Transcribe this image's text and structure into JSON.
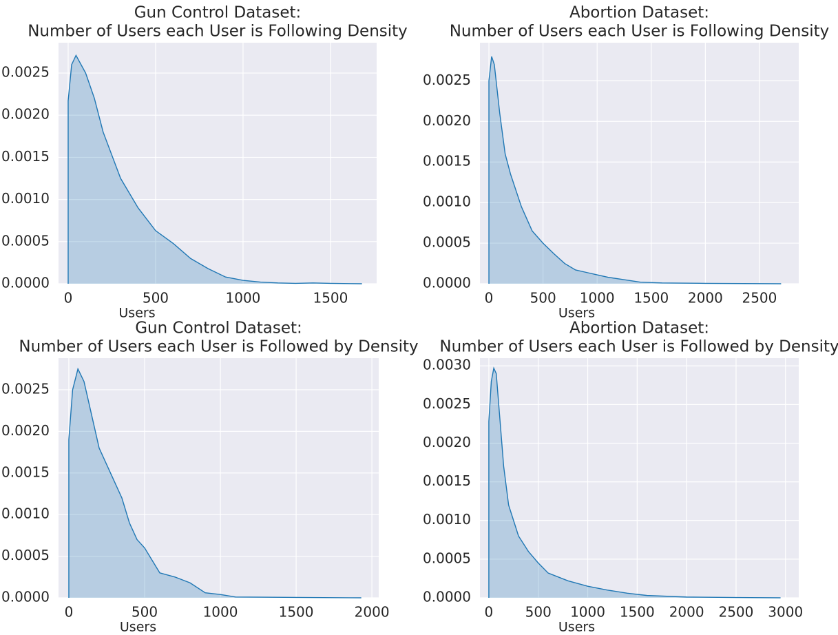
{
  "chart_data": [
    {
      "type": "area",
      "title": [
        "Gun Control Dataset:",
        "Number of Users each User is Following Density"
      ],
      "xlabel": "Users",
      "color": "#1f77b4",
      "grid": true,
      "x": [
        0,
        20,
        45,
        100,
        150,
        200,
        300,
        400,
        500,
        600,
        700,
        800,
        900,
        1000,
        1100,
        1200,
        1300,
        1400,
        1500,
        1680
      ],
      "values": [
        0.00217,
        0.0026,
        0.00271,
        0.0025,
        0.0022,
        0.0018,
        0.00125,
        0.0009,
        0.00063,
        0.00048,
        0.0003,
        0.00018,
        8e-05,
        4e-05,
        2e-05,
        1e-05,
        5e-06,
        1e-05,
        5e-06,
        0
      ],
      "xlim": [
        -55,
        1764
      ],
      "xticks": [
        0,
        500,
        1000,
        1500
      ],
      "ylim": [
        0,
        0.00286
      ],
      "yticks": [
        {
          "value": 0,
          "label": "0.0000"
        },
        {
          "value": 0.0005,
          "label": "0.0005"
        },
        {
          "value": 0.001,
          "label": "0.0010"
        },
        {
          "value": 0.0015,
          "label": "0.0015"
        },
        {
          "value": 0.002,
          "label": "0.0020"
        },
        {
          "value": 0.0025,
          "label": "0.0025"
        }
      ]
    },
    {
      "type": "area",
      "title": [
        "Abortion Dataset:",
        "Number of Users each User is Following Density"
      ],
      "xlabel": "Users",
      "color": "#1f77b4",
      "grid": true,
      "x": [
        0,
        25,
        50,
        100,
        150,
        200,
        300,
        400,
        500,
        600,
        700,
        800,
        900,
        1000,
        1100,
        1200,
        1300,
        1400,
        1600,
        2000,
        2700
      ],
      "values": [
        0.0025,
        0.0028,
        0.0027,
        0.0021,
        0.0016,
        0.00135,
        0.00095,
        0.00065,
        0.0005,
        0.00037,
        0.00025,
        0.00017,
        0.00014,
        0.00011,
        8e-05,
        6e-05,
        4e-05,
        2e-05,
        1e-05,
        5e-06,
        0
      ],
      "xlim": [
        -83,
        2863
      ],
      "xticks": [
        0,
        500,
        1000,
        1500,
        2000,
        2500
      ],
      "ylim": [
        0,
        0.00297
      ],
      "yticks": [
        {
          "value": 0,
          "label": "0.0000"
        },
        {
          "value": 0.0005,
          "label": "0.0005"
        },
        {
          "value": 0.001,
          "label": "0.0010"
        },
        {
          "value": 0.0015,
          "label": "0.0015"
        },
        {
          "value": 0.002,
          "label": "0.0020"
        },
        {
          "value": 0.0025,
          "label": "0.0025"
        }
      ]
    },
    {
      "type": "area",
      "title": [
        "Gun Control Dataset:",
        "Number of Users each User is Followed by Density"
      ],
      "xlabel": "Users",
      "color": "#1f77b4",
      "grid": true,
      "x": [
        0,
        25,
        60,
        100,
        150,
        200,
        300,
        350,
        400,
        450,
        500,
        550,
        600,
        700,
        800,
        900,
        1000,
        1100,
        1500,
        1930
      ],
      "values": [
        0.0019,
        0.0025,
        0.00275,
        0.0026,
        0.0022,
        0.0018,
        0.0014,
        0.0012,
        0.0009,
        0.0007,
        0.0006,
        0.00045,
        0.0003,
        0.00025,
        0.00018,
        6e-05,
        4e-05,
        1e-05,
        5e-06,
        0
      ],
      "xlim": [
        -68,
        2045
      ],
      "xticks": [
        0,
        500,
        1000,
        1500,
        2000
      ],
      "ylim": [
        0,
        0.00288
      ],
      "yticks": [
        {
          "value": 0,
          "label": "0.0000"
        },
        {
          "value": 0.0005,
          "label": "0.0005"
        },
        {
          "value": 0.001,
          "label": "0.0010"
        },
        {
          "value": 0.0015,
          "label": "0.0015"
        },
        {
          "value": 0.002,
          "label": "0.0020"
        },
        {
          "value": 0.0025,
          "label": "0.0025"
        }
      ]
    },
    {
      "type": "area",
      "title": [
        "Abortion Dataset:",
        "Number of Users each User is Followed by Density"
      ],
      "xlabel": "Users",
      "color": "#1f77b4",
      "grid": true,
      "x": [
        0,
        25,
        50,
        75,
        100,
        150,
        200,
        300,
        400,
        500,
        600,
        700,
        800,
        1000,
        1200,
        1400,
        1600,
        2000,
        2500,
        2950
      ],
      "values": [
        0.00228,
        0.0028,
        0.00297,
        0.0029,
        0.0025,
        0.0017,
        0.0012,
        0.0008,
        0.0006,
        0.00045,
        0.00032,
        0.00027,
        0.00022,
        0.00015,
        0.0001,
        6e-05,
        3e-05,
        1e-05,
        4e-06,
        0
      ],
      "xlim": [
        -90,
        3134
      ],
      "xticks": [
        0,
        500,
        1000,
        1500,
        2000,
        2500,
        3000
      ],
      "ylim": [
        0,
        0.0031
      ],
      "yticks": [
        {
          "value": 0,
          "label": "0.0000"
        },
        {
          "value": 0.0005,
          "label": "0.0005"
        },
        {
          "value": 0.001,
          "label": "0.0010"
        },
        {
          "value": 0.0015,
          "label": "0.0015"
        },
        {
          "value": 0.002,
          "label": "0.0020"
        },
        {
          "value": 0.0025,
          "label": "0.0025"
        },
        {
          "value": 0.003,
          "label": "0.0030"
        }
      ]
    }
  ]
}
